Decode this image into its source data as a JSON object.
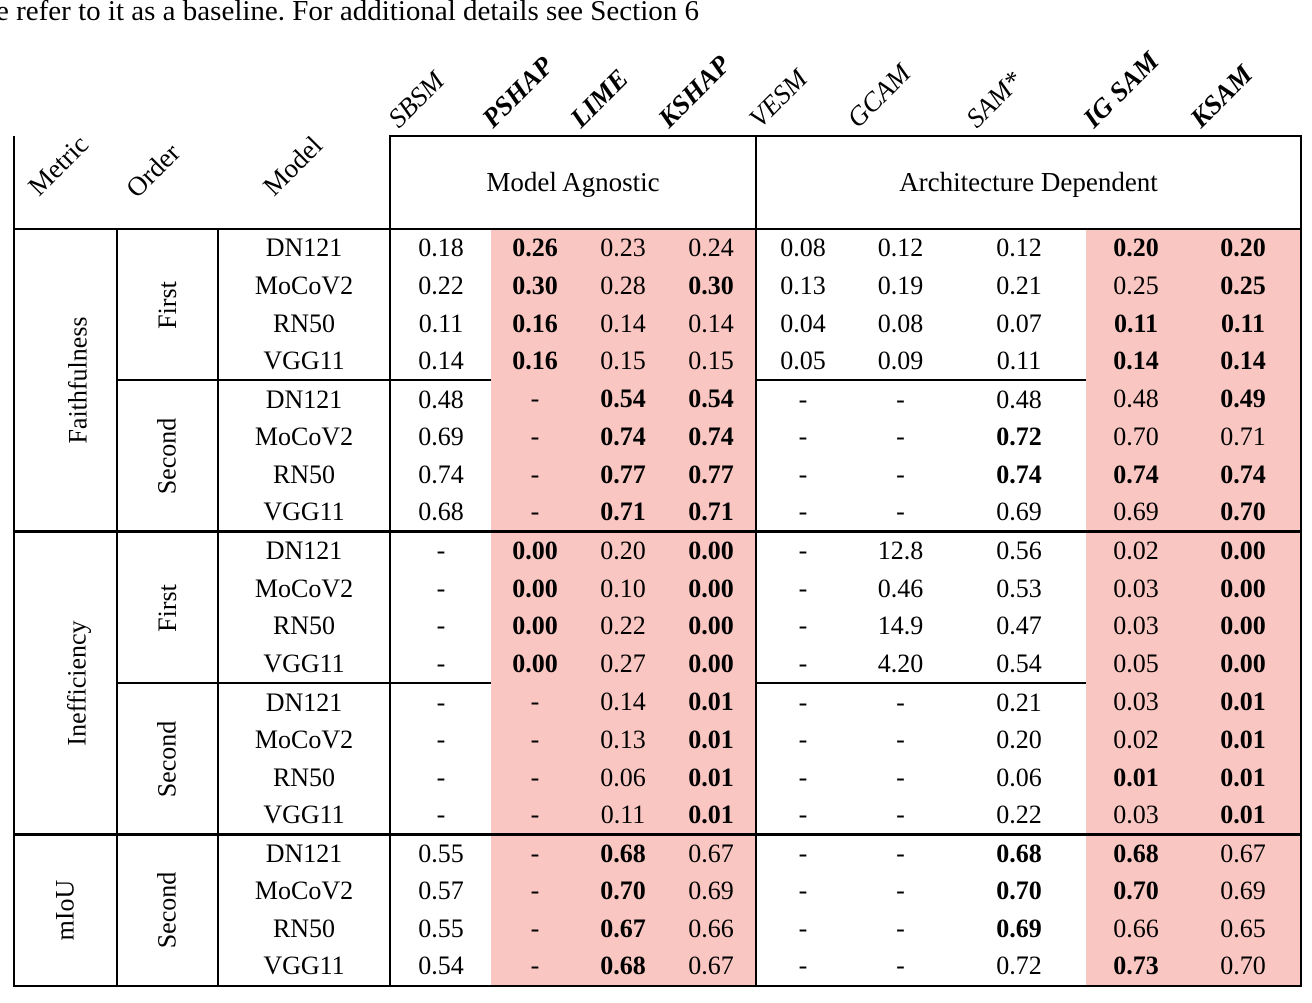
{
  "page": {
    "top_text": "e refer to it as a baseline. For additional details see Section 6"
  },
  "table": {
    "highlight_color": "#f9c6c2",
    "header_columns": [
      "Metric",
      "Order",
      "Model"
    ],
    "group_headers": [
      {
        "label": "Model Agnostic"
      },
      {
        "label": "Architecture Dependent"
      }
    ],
    "method_columns": [
      {
        "label": "SBSM",
        "bold": false,
        "highlight": false
      },
      {
        "label": "PSHAP",
        "bold": true,
        "highlight": true
      },
      {
        "label": "LIME",
        "bold": true,
        "highlight": true
      },
      {
        "label": "KSHAP",
        "bold": true,
        "highlight": true
      },
      {
        "label": "VESM",
        "bold": false,
        "highlight": false
      },
      {
        "label": "GCAM",
        "bold": false,
        "highlight": false
      },
      {
        "label": "SAM*",
        "bold": false,
        "highlight": false
      },
      {
        "label": "IG SAM",
        "bold": true,
        "highlight": true
      },
      {
        "label": "KSAM",
        "bold": true,
        "highlight": true
      }
    ],
    "blocks": [
      {
        "metric": "Faithfulness",
        "orders": [
          {
            "order": "First",
            "rows": [
              {
                "model": "DN121",
                "values": [
                  "0.18",
                  "0.26",
                  "0.23",
                  "0.24",
                  "0.08",
                  "0.12",
                  "0.12",
                  "0.20",
                  "0.20"
                ],
                "bold": [
                  0,
                  1,
                  0,
                  0,
                  0,
                  0,
                  0,
                  1,
                  1
                ]
              },
              {
                "model": "MoCoV2",
                "values": [
                  "0.22",
                  "0.30",
                  "0.28",
                  "0.30",
                  "0.13",
                  "0.19",
                  "0.21",
                  "0.25",
                  "0.25"
                ],
                "bold": [
                  0,
                  1,
                  0,
                  1,
                  0,
                  0,
                  0,
                  0,
                  1
                ]
              },
              {
                "model": "RN50",
                "values": [
                  "0.11",
                  "0.16",
                  "0.14",
                  "0.14",
                  "0.04",
                  "0.08",
                  "0.07",
                  "0.11",
                  "0.11"
                ],
                "bold": [
                  0,
                  1,
                  0,
                  0,
                  0,
                  0,
                  0,
                  1,
                  1
                ]
              },
              {
                "model": "VGG11",
                "values": [
                  "0.14",
                  "0.16",
                  "0.15",
                  "0.15",
                  "0.05",
                  "0.09",
                  "0.11",
                  "0.14",
                  "0.14"
                ],
                "bold": [
                  0,
                  1,
                  0,
                  0,
                  0,
                  0,
                  0,
                  1,
                  1
                ]
              }
            ]
          },
          {
            "order": "Second",
            "rows": [
              {
                "model": "DN121",
                "values": [
                  "0.48",
                  "-",
                  "0.54",
                  "0.54",
                  "-",
                  "-",
                  "0.48",
                  "0.48",
                  "0.49"
                ],
                "bold": [
                  0,
                  0,
                  1,
                  1,
                  0,
                  0,
                  0,
                  0,
                  1
                ]
              },
              {
                "model": "MoCoV2",
                "values": [
                  "0.69",
                  "-",
                  "0.74",
                  "0.74",
                  "-",
                  "-",
                  "0.72",
                  "0.70",
                  "0.71"
                ],
                "bold": [
                  0,
                  0,
                  1,
                  1,
                  0,
                  0,
                  1,
                  0,
                  0
                ]
              },
              {
                "model": "RN50",
                "values": [
                  "0.74",
                  "-",
                  "0.77",
                  "0.77",
                  "-",
                  "-",
                  "0.74",
                  "0.74",
                  "0.74"
                ],
                "bold": [
                  0,
                  0,
                  1,
                  1,
                  0,
                  0,
                  1,
                  1,
                  1
                ]
              },
              {
                "model": "VGG11",
                "values": [
                  "0.68",
                  "-",
                  "0.71",
                  "0.71",
                  "-",
                  "-",
                  "0.69",
                  "0.69",
                  "0.70"
                ],
                "bold": [
                  0,
                  0,
                  1,
                  1,
                  0,
                  0,
                  0,
                  0,
                  1
                ]
              }
            ]
          }
        ]
      },
      {
        "metric": "Inefficiency",
        "orders": [
          {
            "order": "First",
            "rows": [
              {
                "model": "DN121",
                "values": [
                  "-",
                  "0.00",
                  "0.20",
                  "0.00",
                  "-",
                  "12.8",
                  "0.56",
                  "0.02",
                  "0.00"
                ],
                "bold": [
                  0,
                  1,
                  0,
                  1,
                  0,
                  0,
                  0,
                  0,
                  1
                ]
              },
              {
                "model": "MoCoV2",
                "values": [
                  "-",
                  "0.00",
                  "0.10",
                  "0.00",
                  "-",
                  "0.46",
                  "0.53",
                  "0.03",
                  "0.00"
                ],
                "bold": [
                  0,
                  1,
                  0,
                  1,
                  0,
                  0,
                  0,
                  0,
                  1
                ]
              },
              {
                "model": "RN50",
                "values": [
                  "-",
                  "0.00",
                  "0.22",
                  "0.00",
                  "-",
                  "14.9",
                  "0.47",
                  "0.03",
                  "0.00"
                ],
                "bold": [
                  0,
                  1,
                  0,
                  1,
                  0,
                  0,
                  0,
                  0,
                  1
                ]
              },
              {
                "model": "VGG11",
                "values": [
                  "-",
                  "0.00",
                  "0.27",
                  "0.00",
                  "-",
                  "4.20",
                  "0.54",
                  "0.05",
                  "0.00"
                ],
                "bold": [
                  0,
                  1,
                  0,
                  1,
                  0,
                  0,
                  0,
                  0,
                  1
                ]
              }
            ]
          },
          {
            "order": "Second",
            "rows": [
              {
                "model": "DN121",
                "values": [
                  "-",
                  "-",
                  "0.14",
                  "0.01",
                  "-",
                  "-",
                  "0.21",
                  "0.03",
                  "0.01"
                ],
                "bold": [
                  0,
                  0,
                  0,
                  1,
                  0,
                  0,
                  0,
                  0,
                  1
                ]
              },
              {
                "model": "MoCoV2",
                "values": [
                  "-",
                  "-",
                  "0.13",
                  "0.01",
                  "-",
                  "-",
                  "0.20",
                  "0.02",
                  "0.01"
                ],
                "bold": [
                  0,
                  0,
                  0,
                  1,
                  0,
                  0,
                  0,
                  0,
                  1
                ]
              },
              {
                "model": "RN50",
                "values": [
                  "-",
                  "-",
                  "0.06",
                  "0.01",
                  "-",
                  "-",
                  "0.06",
                  "0.01",
                  "0.01"
                ],
                "bold": [
                  0,
                  0,
                  0,
                  1,
                  0,
                  0,
                  0,
                  1,
                  1
                ]
              },
              {
                "model": "VGG11",
                "values": [
                  "-",
                  "-",
                  "0.11",
                  "0.01",
                  "-",
                  "-",
                  "0.22",
                  "0.03",
                  "0.01"
                ],
                "bold": [
                  0,
                  0,
                  0,
                  1,
                  0,
                  0,
                  0,
                  0,
                  1
                ]
              }
            ]
          }
        ]
      },
      {
        "metric": "mIoU",
        "orders": [
          {
            "order": "Second",
            "rows": [
              {
                "model": "DN121",
                "values": [
                  "0.55",
                  "-",
                  "0.68",
                  "0.67",
                  "-",
                  "-",
                  "0.68",
                  "0.68",
                  "0.67"
                ],
                "bold": [
                  0,
                  0,
                  1,
                  0,
                  0,
                  0,
                  1,
                  1,
                  0
                ]
              },
              {
                "model": "MoCoV2",
                "values": [
                  "0.57",
                  "-",
                  "0.70",
                  "0.69",
                  "-",
                  "-",
                  "0.70",
                  "0.70",
                  "0.69"
                ],
                "bold": [
                  0,
                  0,
                  1,
                  0,
                  0,
                  0,
                  1,
                  1,
                  0
                ]
              },
              {
                "model": "RN50",
                "values": [
                  "0.55",
                  "-",
                  "0.67",
                  "0.66",
                  "-",
                  "-",
                  "0.69",
                  "0.66",
                  "0.65"
                ],
                "bold": [
                  0,
                  0,
                  1,
                  0,
                  0,
                  0,
                  1,
                  0,
                  0
                ]
              },
              {
                "model": "VGG11",
                "values": [
                  "0.54",
                  "-",
                  "0.68",
                  "0.67",
                  "-",
                  "-",
                  "0.72",
                  "0.73",
                  "0.70"
                ],
                "bold": [
                  0,
                  0,
                  1,
                  0,
                  0,
                  0,
                  0,
                  1,
                  0
                ]
              }
            ]
          }
        ]
      }
    ]
  }
}
